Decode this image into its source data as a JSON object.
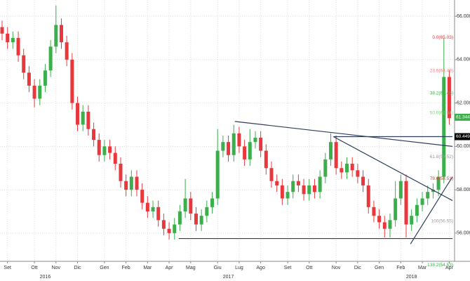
{
  "chart_data": {
    "type": "candlestick",
    "categories": [
      null,
      "Set",
      null,
      null,
      null,
      null,
      "Ott",
      null,
      null,
      null,
      "Nov",
      null,
      null,
      null,
      "Dic",
      null,
      null,
      null,
      null,
      "Gen",
      null,
      null,
      null,
      "Feb",
      null,
      null,
      null,
      "Mar",
      null,
      null,
      null,
      "Apr",
      null,
      null,
      null,
      "Mag",
      null,
      null,
      null,
      null,
      "Giu",
      null,
      null,
      null,
      "Lug",
      null,
      null,
      null,
      "Ago",
      null,
      null,
      null,
      null,
      "Set",
      null,
      null,
      null,
      "Ott",
      null,
      null,
      null,
      null,
      "Nov",
      null,
      null,
      null,
      "Dic",
      null,
      null,
      null,
      "Gen",
      null,
      null,
      null,
      "Feb",
      null,
      null,
      null,
      "Mar",
      null,
      null,
      null,
      null,
      "Apr"
    ],
    "years": [
      "2016",
      "2017",
      "2018"
    ],
    "open": [
      65.5,
      65.2,
      64.8,
      65.0,
      64.2,
      63.4,
      62.8,
      62.2,
      62.8,
      63.5,
      64.6,
      65.6,
      64.8,
      64.0,
      62.0,
      61.0,
      61.6,
      60.8,
      60.3,
      59.6,
      60.0,
      59.7,
      59.2,
      58.4,
      58.0,
      58.6,
      58.0,
      57.4,
      57.0,
      57.2,
      56.6,
      56.2,
      56.0,
      56.4,
      57.0,
      57.6,
      56.9,
      56.4,
      56.8,
      57.2,
      57.6,
      59.8,
      60.2,
      59.6,
      60.6,
      60.0,
      59.4,
      60.2,
      60.4,
      59.8,
      59.0,
      58.4,
      58.2,
      57.6,
      57.9,
      58.4,
      58.2,
      57.8,
      58.2,
      57.9,
      58.6,
      59.4,
      60.2,
      59.0,
      58.8,
      59.2,
      58.9,
      58.6,
      58.2,
      57.2,
      56.8,
      56.5,
      56.2,
      56.6,
      57.6,
      58.4,
      56.4,
      56.8,
      57.3,
      57.6,
      57.9,
      58.0,
      58.6,
      63.2
    ],
    "high": [
      65.8,
      65.5,
      65.3,
      65.3,
      64.5,
      63.7,
      63.1,
      63.1,
      63.8,
      64.9,
      66.5,
      65.9,
      65.1,
      64.3,
      62.3,
      61.9,
      61.9,
      61.1,
      60.6,
      60.3,
      60.3,
      60.0,
      59.5,
      58.7,
      58.9,
      58.9,
      58.3,
      57.7,
      57.5,
      57.5,
      56.9,
      56.5,
      56.7,
      57.3,
      58.5,
      57.9,
      57.2,
      57.1,
      57.5,
      57.9,
      60.8,
      60.5,
      60.5,
      61.0,
      60.9,
      60.3,
      60.8,
      60.7,
      60.7,
      60.1,
      59.3,
      58.7,
      58.5,
      58.2,
      58.7,
      58.7,
      58.5,
      58.5,
      58.5,
      58.9,
      59.7,
      60.6,
      60.5,
      59.3,
      59.5,
      59.5,
      59.2,
      58.9,
      58.5,
      57.5,
      57.1,
      56.8,
      56.9,
      58.4,
      58.7,
      58.7,
      57.1,
      57.6,
      57.9,
      58.2,
      58.3,
      58.9,
      65.0,
      63.5
    ],
    "low": [
      64.9,
      64.5,
      64.5,
      63.9,
      63.1,
      62.5,
      61.8,
      61.9,
      62.5,
      63.2,
      64.3,
      64.5,
      63.7,
      61.7,
      60.7,
      60.7,
      60.5,
      60.0,
      59.3,
      59.3,
      59.4,
      58.9,
      58.1,
      57.7,
      57.7,
      57.7,
      57.1,
      56.7,
      56.7,
      56.3,
      55.9,
      55.7,
      55.7,
      56.1,
      56.7,
      56.6,
      56.1,
      56.1,
      56.5,
      56.9,
      57.3,
      59.5,
      59.3,
      59.3,
      59.7,
      59.1,
      59.1,
      59.9,
      59.5,
      58.7,
      58.1,
      57.9,
      57.3,
      57.3,
      57.6,
      57.9,
      57.5,
      57.5,
      57.6,
      57.6,
      58.3,
      59.1,
      58.7,
      58.5,
      58.5,
      58.6,
      58.3,
      57.9,
      56.9,
      56.5,
      56.2,
      55.8,
      55.8,
      56.3,
      57.3,
      55.8,
      56.1,
      56.5,
      57.0,
      57.3,
      57.6,
      57.7,
      58.3,
      61.0
    ],
    "close": [
      65.2,
      64.8,
      65.0,
      64.2,
      63.4,
      62.8,
      62.2,
      62.8,
      63.5,
      64.6,
      65.6,
      64.8,
      64.0,
      62.0,
      61.0,
      61.6,
      60.8,
      60.3,
      59.6,
      60.0,
      59.7,
      59.2,
      58.4,
      58.0,
      58.6,
      58.0,
      57.4,
      57.0,
      57.2,
      56.6,
      56.2,
      56.0,
      56.4,
      57.0,
      57.6,
      56.9,
      56.4,
      56.8,
      57.2,
      57.6,
      59.8,
      60.2,
      59.6,
      60.6,
      60.0,
      59.4,
      60.2,
      60.4,
      59.8,
      59.0,
      58.4,
      58.2,
      57.6,
      57.9,
      58.4,
      58.2,
      57.8,
      58.2,
      57.9,
      58.6,
      59.4,
      60.2,
      59.0,
      58.8,
      59.2,
      58.9,
      58.6,
      58.2,
      57.2,
      56.8,
      56.5,
      56.2,
      56.6,
      57.6,
      58.4,
      56.4,
      56.8,
      57.3,
      57.6,
      57.9,
      58.0,
      58.6,
      63.2,
      61.3
    ],
    "up_color": "#3cae4b",
    "down_color": "#e8383d",
    "ylim": [
      54.7,
      66.75
    ],
    "yticks": [
      {
        "value": 56,
        "label": "56.0000"
      },
      {
        "value": 58,
        "label": "58.0000"
      },
      {
        "value": 60,
        "label": "60.0000"
      },
      {
        "value": 62,
        "label": "62.0000"
      },
      {
        "value": 64,
        "label": "64.0000"
      },
      {
        "value": 66,
        "label": "66.0000"
      }
    ],
    "grid": true,
    "trendlines": [
      {
        "from": [
          43.2,
          61.15
        ],
        "to": [
          83.6,
          60.0
        ]
      },
      {
        "from": [
          61.5,
          60.45
        ],
        "to": [
          83.6,
          60.45
        ]
      },
      {
        "from": [
          61.5,
          60.45
        ],
        "to": [
          83.6,
          57.5
        ]
      },
      {
        "from": [
          32.8,
          55.75
        ],
        "to": [
          83.6,
          55.75
        ]
      },
      {
        "from": [
          75.8,
          55.5
        ],
        "to": [
          83.6,
          58.6
        ]
      }
    ],
    "levels": [
      {
        "label": "0.0(65.03)",
        "price": 65.03,
        "color": "#e8383d"
      },
      {
        "label": "23.6(63.49)",
        "price": 63.49,
        "color": "#f08080"
      },
      {
        "label": "38.2(62.45)",
        "price": 62.45,
        "color": "#3cae4b"
      },
      {
        "label": "50.0(61.54)",
        "price": 61.54,
        "color": "#7fd17f"
      },
      {
        "label": "61.8(59.52)",
        "price": 59.52,
        "color": "#999999"
      },
      {
        "label": "78.6(58.51)",
        "price": 58.51,
        "color": "#e8383d"
      },
      {
        "label": "100(56.55)",
        "price": 56.55,
        "color": "#999999"
      },
      {
        "label": "138.2(54.53)",
        "price": 54.53,
        "color": "#3cae4b"
      }
    ],
    "price_tags": [
      {
        "value": 61.3445,
        "color": "#3cae4b"
      },
      {
        "value": 60.4493,
        "color": "#000000"
      }
    ]
  }
}
